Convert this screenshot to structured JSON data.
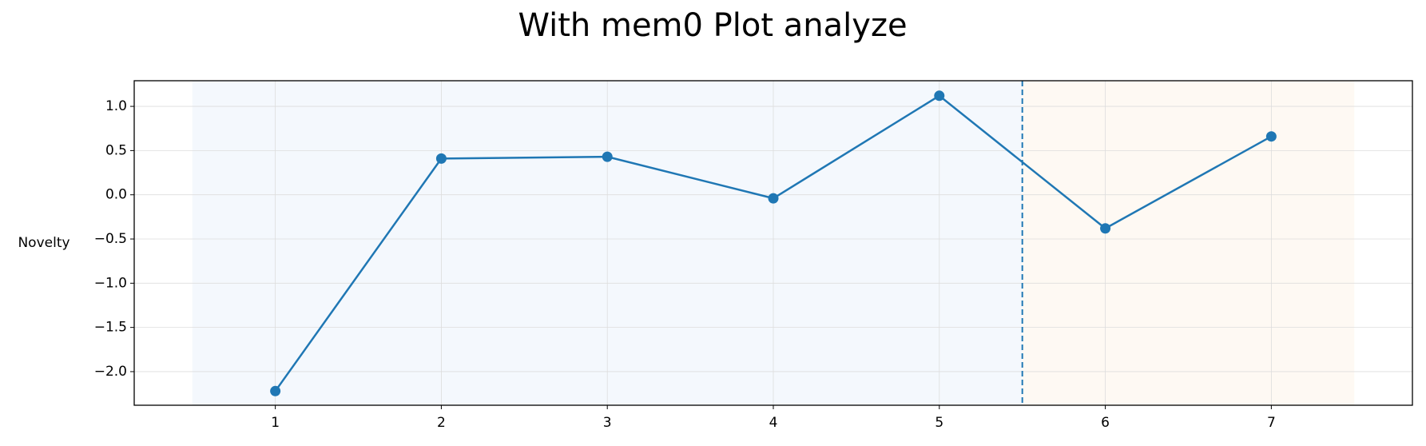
{
  "chart_data": {
    "type": "line",
    "title": "With mem0 Plot analyze",
    "y_label": "Novelty",
    "x": [
      1,
      2,
      3,
      4,
      5,
      6,
      7
    ],
    "series": [
      {
        "name": "Novelty",
        "color": "#1f77b4",
        "values": [
          -2.22,
          0.41,
          0.43,
          -0.04,
          1.12,
          -0.38,
          0.66
        ]
      }
    ],
    "xlim": [
      0.15,
      7.85
    ],
    "ylim": [
      -2.38,
      1.29
    ],
    "xticks": [
      1,
      2,
      3,
      4,
      5,
      6,
      7
    ],
    "yticks": [
      {
        "value": -2,
        "label": "−2.0"
      },
      {
        "value": -1.5,
        "label": "−1.5"
      },
      {
        "value": -1,
        "label": "−1.0"
      },
      {
        "value": -0.5,
        "label": "−0.5"
      },
      {
        "value": 0,
        "label": "0.0"
      },
      {
        "value": 0.5,
        "label": "0.5"
      },
      {
        "value": 1,
        "label": "1.0"
      }
    ],
    "spans": [
      {
        "start": 0.5,
        "end": 5.5,
        "color": "#f4f8fd"
      },
      {
        "start": 5.5,
        "end": 7.5,
        "color": "#fef9f3"
      }
    ],
    "vline": {
      "x": 5.5,
      "color": "#1f77b4"
    },
    "grid": true
  }
}
